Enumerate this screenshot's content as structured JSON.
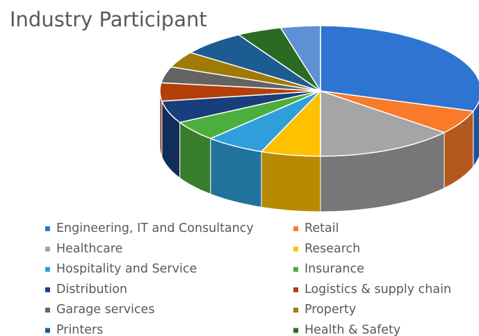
{
  "chart_data": {
    "type": "pie",
    "title": "Industry Participant",
    "categories": [
      "Engineering, IT and Consultancy",
      "Retail",
      "Healthcare",
      "Research",
      "Hospitality and Service",
      "Insurance",
      "Distribution",
      "Logistics & supply chain",
      "Garage services",
      "Property",
      "Printers",
      "Health & Safety",
      null
    ],
    "values": [
      30,
      6,
      14,
      6,
      6,
      5,
      5.5,
      4.5,
      4,
      4,
      6.5,
      4.5,
      4
    ],
    "colors": [
      "#2e75d2",
      "#f97b2a",
      "#a5a5a5",
      "#ffc000",
      "#2f9fdc",
      "#4cae3c",
      "#183f7c",
      "#b3400a",
      "#636363",
      "#a07a06",
      "#1d5c93",
      "#2b6a22",
      "#5e90d4"
    ]
  }
}
